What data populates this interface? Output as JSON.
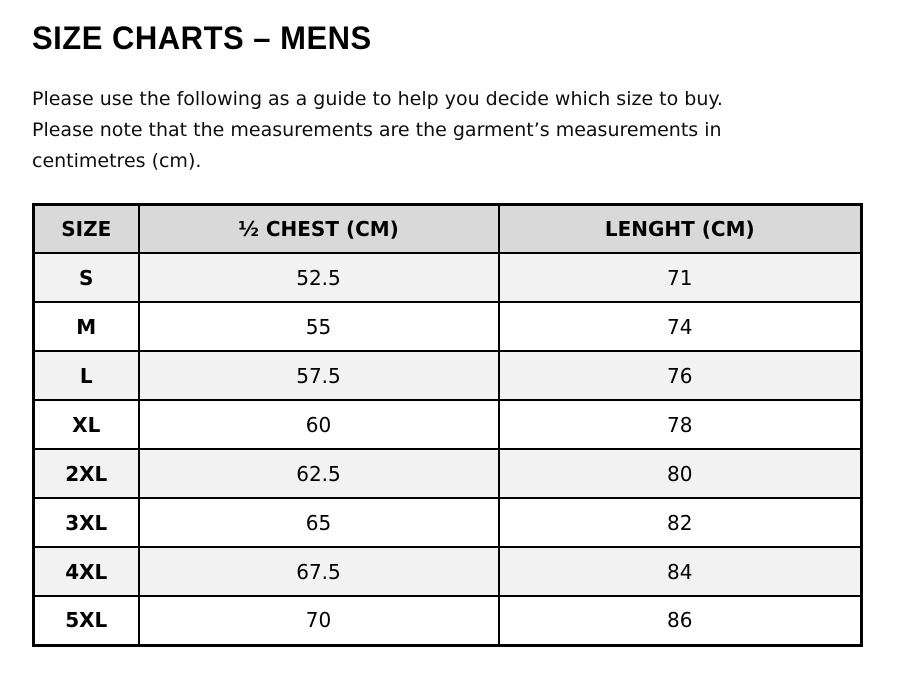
{
  "page": {
    "title": "SIZE CHARTS – MENS",
    "intro_lines": [
      "Please use the following as a guide to help you decide which size to buy.",
      "Please note that the measurements are the garment’s measurements in",
      "centimetres (cm)."
    ]
  },
  "table": {
    "columns": [
      "SIZE",
      "½ CHEST (CM)",
      "LENGHT (CM)"
    ],
    "rows": [
      {
        "size": "S",
        "half_chest_cm": "52.5",
        "length_cm": "71"
      },
      {
        "size": "M",
        "half_chest_cm": "55",
        "length_cm": "74"
      },
      {
        "size": "L",
        "half_chest_cm": "57.5",
        "length_cm": "76"
      },
      {
        "size": "XL",
        "half_chest_cm": "60",
        "length_cm": "78"
      },
      {
        "size": "2XL",
        "half_chest_cm": "62.5",
        "length_cm": "80"
      },
      {
        "size": "3XL",
        "half_chest_cm": "65",
        "length_cm": "82"
      },
      {
        "size": "4XL",
        "half_chest_cm": "67.5",
        "length_cm": "84"
      },
      {
        "size": "5XL",
        "half_chest_cm": "70",
        "length_cm": "86"
      }
    ]
  },
  "colors": {
    "header_bg": "#d9d9d9",
    "alt_row_bg": "#f2f2f2",
    "row_bg": "#ffffff",
    "border": "#000000",
    "text": "#000000",
    "background": "#ffffff"
  }
}
